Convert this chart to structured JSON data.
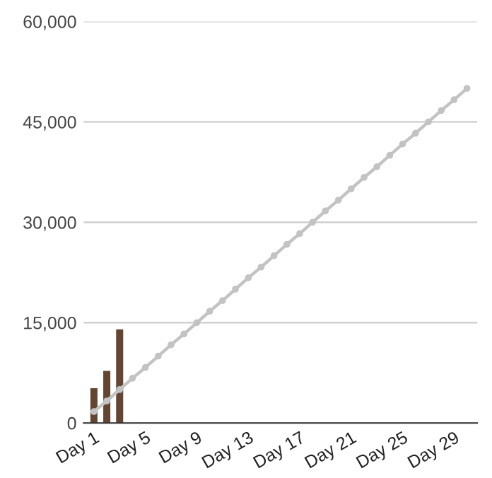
{
  "chart_data": {
    "type": "bar",
    "categories": [
      "Day 1",
      null,
      null,
      null,
      "Day 5",
      null,
      null,
      null,
      "Day 9",
      null,
      null,
      null,
      "Day 13",
      null,
      null,
      null,
      "Day 17",
      null,
      null,
      null,
      "Day 21",
      null,
      null,
      null,
      "Day 25",
      null,
      null,
      null,
      "Day 29",
      null
    ],
    "series": [
      {
        "color": "#634532",
        "values": [
          5200,
          7800,
          14000,
          null,
          null,
          null,
          null,
          null,
          null,
          null,
          null,
          null,
          null,
          null,
          null,
          null,
          null,
          null,
          null,
          null,
          null,
          null,
          null,
          null,
          null,
          null,
          null,
          null,
          null,
          null
        ]
      },
      {
        "type": "line",
        "color": "#c3c3c3",
        "marker": "circle",
        "line_style": "solid",
        "values": [
          1700,
          3300,
          5000,
          6700,
          8300,
          10000,
          11700,
          13300,
          15000,
          16700,
          18300,
          20000,
          21700,
          23300,
          25000,
          26700,
          28300,
          30000,
          31700,
          33300,
          35000,
          36700,
          38300,
          40000,
          41700,
          43300,
          45000,
          46700,
          48300,
          50000
        ]
      }
    ],
    "ylim": [
      0,
      60000
    ],
    "yticks": [
      {
        "value": 0,
        "label": "0"
      },
      {
        "value": 15000,
        "label": "15,000"
      },
      {
        "value": 30000,
        "label": "30,000"
      },
      {
        "value": 45000,
        "label": "45,000"
      },
      {
        "value": 60000,
        "label": "60,000"
      }
    ],
    "grid": "y",
    "legend": false
  }
}
